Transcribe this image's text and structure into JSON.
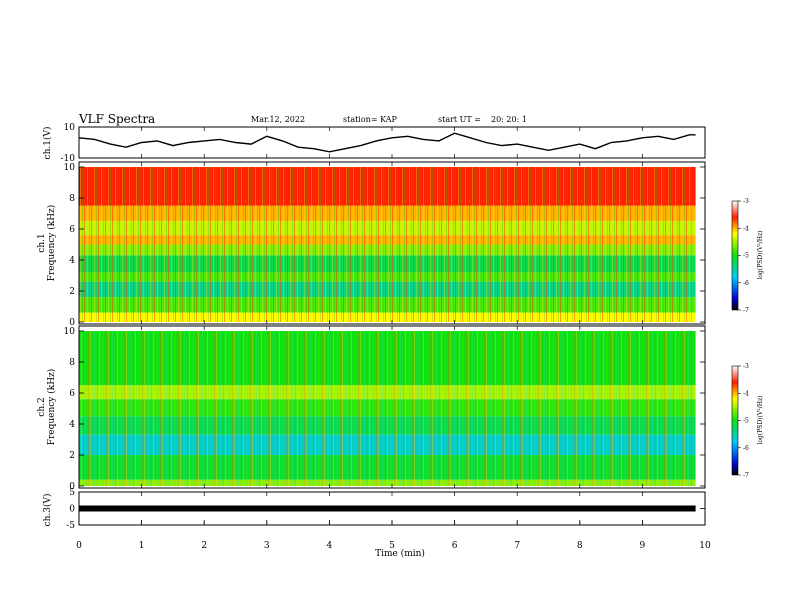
{
  "header": {
    "title": "VLF Spectra",
    "date": "Mar.12, 2022",
    "station": "station= KAP",
    "start_label": "start  UT  =",
    "start_time": "20: 20: 1"
  },
  "chart_data": [
    {
      "type": "line",
      "id": "ch1-waveform",
      "ylabel": "ch.1(V)",
      "ylim": [
        -10,
        10
      ],
      "yticks": [
        -10,
        10
      ],
      "xlim": [
        0,
        10
      ],
      "series": [
        {
          "x": [
            0,
            0.25,
            0.5,
            0.75,
            1,
            1.25,
            1.5,
            1.75,
            2,
            2.25,
            2.5,
            2.75,
            3,
            3.25,
            3.5,
            3.75,
            4,
            4.25,
            4.5,
            4.75,
            5,
            5.25,
            5.5,
            5.75,
            6,
            6.25,
            6.5,
            6.75,
            7,
            7.25,
            7.5,
            7.75,
            8,
            8.25,
            8.5,
            8.75,
            9,
            9.25,
            9.5,
            9.75,
            9.85
          ],
          "y": [
            3,
            2,
            -1,
            -3,
            0,
            1,
            -2,
            0,
            1,
            2,
            0,
            -1,
            4,
            1,
            -3,
            -4,
            -6,
            -4,
            -2,
            1,
            3,
            4,
            2,
            1,
            6,
            3,
            0,
            -2,
            -1,
            -3,
            -5,
            -3,
            -1,
            -4,
            0,
            1,
            3,
            4,
            2,
            5,
            5
          ]
        }
      ]
    },
    {
      "type": "heatmap",
      "id": "ch1-spectrogram",
      "ylabel": "ch.1\nFrequency  (kHz)",
      "ylim": [
        0,
        10
      ],
      "yticks": [
        0,
        2,
        4,
        6,
        8,
        10
      ],
      "xlim": [
        0,
        9.85
      ],
      "colorbar": {
        "label": "log(PSD)(V²/Hz)",
        "range": [
          -7,
          -3
        ],
        "ticks": [
          -7,
          -6,
          -5,
          -4,
          -3
        ]
      },
      "bands": [
        {
          "from": 7.5,
          "to": 10,
          "level": -3.6
        },
        {
          "from": 6.5,
          "to": 7.5,
          "level": -4.0
        },
        {
          "from": 5.6,
          "to": 6.5,
          "level": -4.4
        },
        {
          "from": 5.0,
          "to": 5.6,
          "level": -4.0
        },
        {
          "from": 4.3,
          "to": 5.0,
          "level": -4.6
        },
        {
          "from": 3.2,
          "to": 4.3,
          "level": -5.2
        },
        {
          "from": 2.6,
          "to": 3.2,
          "level": -4.8
        },
        {
          "from": 1.6,
          "to": 2.6,
          "level": -5.4
        },
        {
          "from": 0.6,
          "to": 1.6,
          "level": -4.8
        },
        {
          "from": 0,
          "to": 0.6,
          "level": -4.2
        }
      ]
    },
    {
      "type": "heatmap",
      "id": "ch2-spectrogram",
      "ylabel": "ch.2\nFrequency  (kHz)",
      "ylim": [
        0,
        10
      ],
      "yticks": [
        0,
        2,
        4,
        6,
        8,
        10
      ],
      "xlim": [
        0,
        9.85
      ],
      "colorbar": {
        "label": "log(PSD)(V²/Hz)",
        "range": [
          -7,
          -3
        ],
        "ticks": [
          -7,
          -6,
          -5,
          -4,
          -3
        ]
      },
      "bands": [
        {
          "from": 6.5,
          "to": 10,
          "level": -5.0
        },
        {
          "from": 5.6,
          "to": 6.5,
          "level": -4.5
        },
        {
          "from": 4.5,
          "to": 5.6,
          "level": -4.9
        },
        {
          "from": 3.3,
          "to": 4.5,
          "level": -5.2
        },
        {
          "from": 2.0,
          "to": 3.3,
          "level": -5.6
        },
        {
          "from": 0.4,
          "to": 2.0,
          "level": -5.1
        },
        {
          "from": 0,
          "to": 0.4,
          "level": -4.6
        }
      ]
    },
    {
      "type": "line",
      "id": "ch3-waveform",
      "ylabel": "ch.3(V)",
      "ylim": [
        -5,
        5
      ],
      "yticks": [
        -5,
        0,
        5
      ],
      "xlim": [
        0,
        10
      ],
      "series": [
        {
          "x": [
            0,
            9.85
          ],
          "y": [
            0,
            0
          ]
        }
      ]
    }
  ],
  "xaxis": {
    "label": "Time  (min)",
    "ticks": [
      "0",
      "1",
      "2",
      "3",
      "4",
      "5",
      "6",
      "7",
      "8",
      "9",
      "10"
    ]
  }
}
